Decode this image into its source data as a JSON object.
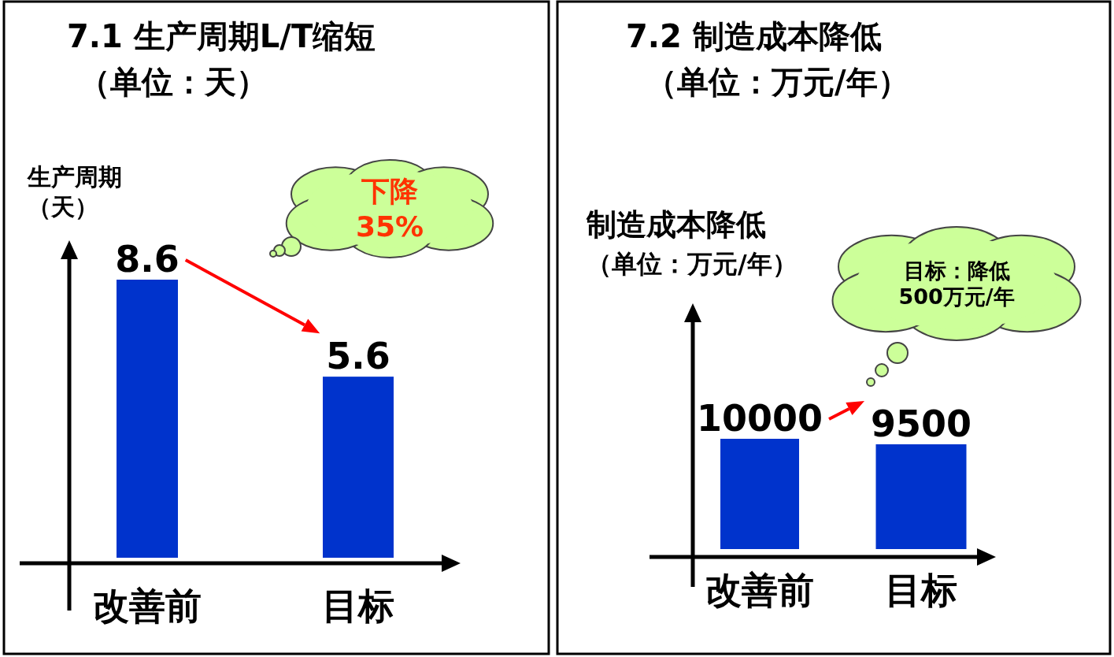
{
  "chart_data": [
    {
      "type": "bar",
      "title": "7.1 生产周期L/T缩短",
      "subtitle": "（单位：天）",
      "ylabel": "生产周期（天）",
      "categories": [
        "改善前",
        "目标"
      ],
      "values": [
        8.6,
        5.6
      ],
      "color": "#0033cc",
      "data_labels": true,
      "annotations": [
        "下降35%"
      ]
    },
    {
      "type": "bar",
      "title": "7.2 制造成本降低",
      "subtitle": "（单位：万元/年）",
      "ylabel": "制造成本降低（单位：万元/年）",
      "categories": [
        "改善前",
        "目标"
      ],
      "values": [
        10000,
        9500
      ],
      "color": "#0033cc",
      "data_labels": true,
      "annotations": [
        "目标：降低500万元/年"
      ]
    }
  ]
}
